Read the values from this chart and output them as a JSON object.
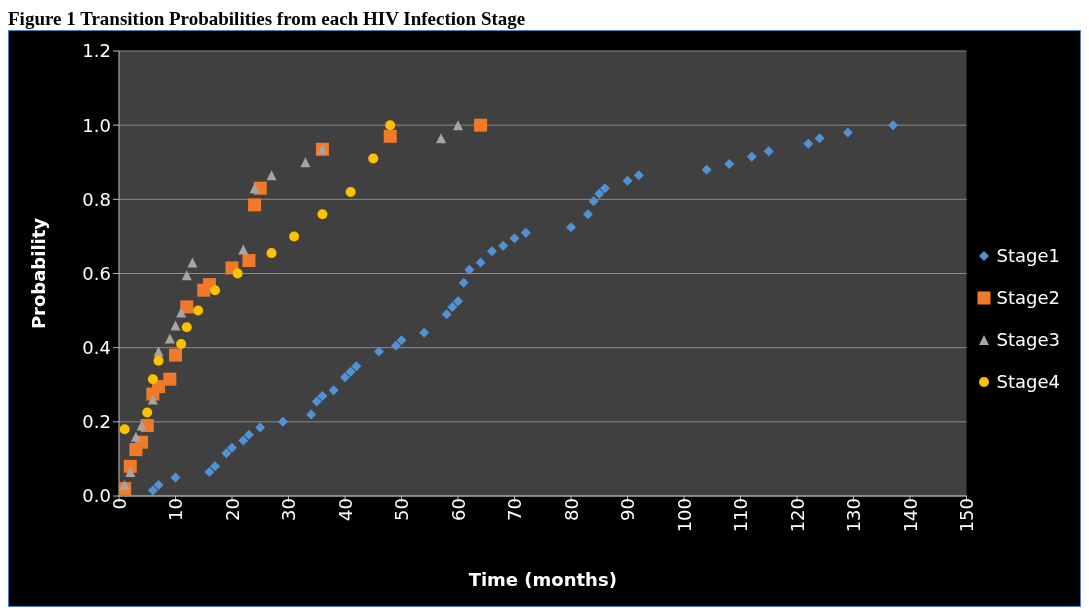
{
  "chart_data": {
    "type": "scatter",
    "title": "Figure 1 Transition Probabilities from each HIV Infection Stage",
    "xlabel": "Time (months)",
    "ylabel": "Probability",
    "xlim": [
      0,
      150
    ],
    "xticks": [
      0,
      10,
      20,
      30,
      40,
      50,
      60,
      70,
      80,
      90,
      100,
      110,
      120,
      130,
      140,
      150
    ],
    "ylim": [
      0,
      1.2
    ],
    "yticks": [
      {
        "value": 0,
        "label": "0.0"
      },
      {
        "value": 0.2,
        "label": "0.2"
      },
      {
        "value": 0.4,
        "label": "0.4"
      },
      {
        "value": 0.6,
        "label": "0.6"
      },
      {
        "value": 0.8,
        "label": "0.8"
      },
      {
        "value": 1.0,
        "label": "1.0"
      },
      {
        "value": 1.2,
        "label": "1.2"
      }
    ],
    "grid": "y",
    "legend": "right",
    "series": [
      {
        "name": "Stage1",
        "color": "#4f93d6",
        "marker": "diamond",
        "x": [
          6,
          7,
          10,
          16,
          17,
          19,
          20,
          22,
          23,
          25,
          29,
          34,
          35,
          36,
          38,
          40,
          41,
          42,
          46,
          49,
          50,
          54,
          58,
          59,
          60,
          61,
          62,
          64,
          66,
          68,
          70,
          72,
          80,
          83,
          84,
          85,
          86,
          90,
          92,
          104,
          108,
          112,
          115,
          122,
          124,
          129,
          137
        ],
        "values": [
          0.015,
          0.03,
          0.05,
          0.065,
          0.08,
          0.115,
          0.13,
          0.15,
          0.165,
          0.185,
          0.2,
          0.22,
          0.255,
          0.27,
          0.285,
          0.32,
          0.335,
          0.35,
          0.39,
          0.405,
          0.42,
          0.44,
          0.49,
          0.51,
          0.525,
          0.575,
          0.61,
          0.63,
          0.66,
          0.675,
          0.695,
          0.71,
          0.725,
          0.76,
          0.795,
          0.815,
          0.83,
          0.85,
          0.865,
          0.88,
          0.895,
          0.915,
          0.93,
          0.95,
          0.965,
          0.98,
          1.0
        ]
      },
      {
        "name": "Stage2",
        "color": "#f07a2a",
        "marker": "square",
        "x": [
          1,
          2,
          3,
          4,
          5,
          6,
          7,
          9,
          10,
          12,
          15,
          16,
          20,
          23,
          24,
          25,
          36,
          48,
          64
        ],
        "values": [
          0.02,
          0.08,
          0.125,
          0.145,
          0.19,
          0.275,
          0.295,
          0.315,
          0.38,
          0.51,
          0.555,
          0.57,
          0.615,
          0.635,
          0.785,
          0.83,
          0.935,
          0.97,
          1.0
        ]
      },
      {
        "name": "Stage3",
        "color": "#a5a5a5",
        "marker": "triangle",
        "x": [
          1,
          2,
          3,
          4,
          6,
          7,
          9,
          10,
          11,
          12,
          13,
          22,
          24,
          27,
          33,
          36,
          57,
          60
        ],
        "values": [
          0.03,
          0.065,
          0.16,
          0.19,
          0.26,
          0.39,
          0.425,
          0.46,
          0.495,
          0.595,
          0.63,
          0.665,
          0.83,
          0.865,
          0.9,
          0.935,
          0.965,
          1.0
        ]
      },
      {
        "name": "Stage4",
        "color": "#ffc000",
        "marker": "circle",
        "x": [
          1,
          5,
          6,
          7,
          11,
          12,
          14,
          17,
          21,
          27,
          31,
          36,
          41,
          45,
          48
        ],
        "values": [
          0.18,
          0.225,
          0.315,
          0.365,
          0.41,
          0.455,
          0.5,
          0.555,
          0.6,
          0.655,
          0.7,
          0.76,
          0.82,
          0.91,
          1.0
        ]
      }
    ]
  }
}
